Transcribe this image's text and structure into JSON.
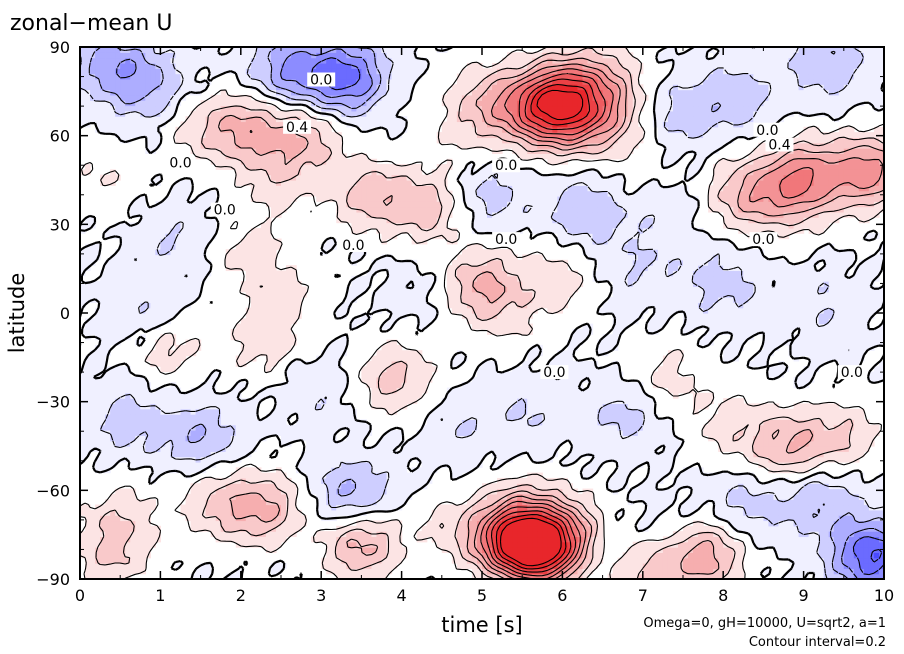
{
  "chart_data": {
    "type": "heatmap",
    "title": "zonal−mean U",
    "xlabel": "time [s]",
    "ylabel": "latitude",
    "xlim": [
      0,
      10
    ],
    "ylim": [
      -90,
      90
    ],
    "x_ticks": [
      0,
      1,
      2,
      3,
      4,
      5,
      6,
      7,
      8,
      9,
      10
    ],
    "y_ticks": [
      -90,
      -60,
      -30,
      0,
      30,
      60,
      90
    ],
    "y_tick_labels": [
      "−90",
      "−60",
      "−30",
      "0",
      "30",
      "60",
      "90"
    ],
    "annotation_params": "Omega=0, gH=10000, U=sqrt2, a=1",
    "annotation_contour": "Contour interval=0.2",
    "contour_interval": 0.2,
    "colormap": {
      "negative": "#3a3aff",
      "zero": "#ffffff",
      "positive": "#e8262b"
    },
    "contour_labels": [
      {
        "x": 3.0,
        "y": 79,
        "text": "0.0"
      },
      {
        "x": 2.7,
        "y": 63,
        "text": "0.4"
      },
      {
        "x": 1.25,
        "y": 51,
        "text": "0.0"
      },
      {
        "x": 1.8,
        "y": 35,
        "text": "0.0"
      },
      {
        "x": 3.4,
        "y": 23,
        "text": "0.0"
      },
      {
        "x": 5.3,
        "y": 50,
        "text": "0.0"
      },
      {
        "x": 5.3,
        "y": 25,
        "text": "0.0"
      },
      {
        "x": 8.5,
        "y": 25,
        "text": "0.0"
      },
      {
        "x": 8.55,
        "y": 62,
        "text": "0.0"
      },
      {
        "x": 8.7,
        "y": 57,
        "text": "0.4"
      },
      {
        "x": 5.9,
        "y": -20,
        "text": "0.0"
      },
      {
        "x": 9.6,
        "y": -20,
        "text": "0.0"
      }
    ],
    "features": [
      {
        "x": 6.0,
        "y": 74,
        "value": 1.0
      },
      {
        "x": 5.7,
        "y": 68,
        "value": 0.9
      },
      {
        "x": 6.2,
        "y": 65,
        "value": 0.6
      },
      {
        "x": 5.1,
        "y": 72,
        "value": 0.5
      },
      {
        "x": 6.5,
        "y": 80,
        "value": 0.4
      },
      {
        "x": 3.3,
        "y": 80,
        "value": -0.9
      },
      {
        "x": 2.6,
        "y": 82,
        "value": -0.6
      },
      {
        "x": 0.4,
        "y": 84,
        "value": -0.5
      },
      {
        "x": 0.9,
        "y": 76,
        "value": -0.4
      },
      {
        "x": 9.3,
        "y": 85,
        "value": -0.4
      },
      {
        "x": 2.1,
        "y": 62,
        "value": 0.6
      },
      {
        "x": 2.8,
        "y": 60,
        "value": 0.5
      },
      {
        "x": 1.5,
        "y": 63,
        "value": 0.3
      },
      {
        "x": 3.6,
        "y": 40,
        "value": 0.5
      },
      {
        "x": 4.3,
        "y": 36,
        "value": 0.5
      },
      {
        "x": 2.5,
        "y": 45,
        "value": 0.3
      },
      {
        "x": 9.8,
        "y": 48,
        "value": 0.9
      },
      {
        "x": 9.0,
        "y": 47,
        "value": 0.7
      },
      {
        "x": 8.3,
        "y": 40,
        "value": 0.6
      },
      {
        "x": 8.9,
        "y": 40,
        "value": 0.4
      },
      {
        "x": 6.6,
        "y": 68,
        "value": 0.4
      },
      {
        "x": 7.5,
        "y": 68,
        "value": -0.3
      },
      {
        "x": 8.2,
        "y": 73,
        "value": -0.3
      },
      {
        "x": 5.1,
        "y": 40,
        "value": -0.3
      },
      {
        "x": 6.3,
        "y": 35,
        "value": -0.4
      },
      {
        "x": 7.2,
        "y": 37,
        "value": -0.2
      },
      {
        "x": 2.1,
        "y": 20,
        "value": 0.3
      },
      {
        "x": 5.0,
        "y": 10,
        "value": 0.6
      },
      {
        "x": 5.9,
        "y": 12,
        "value": 0.3
      },
      {
        "x": 5.3,
        "y": -2,
        "value": 0.2
      },
      {
        "x": 8.0,
        "y": 10,
        "value": -0.3
      },
      {
        "x": 9.3,
        "y": 2,
        "value": -0.2
      },
      {
        "x": 7.0,
        "y": 15,
        "value": -0.2
      },
      {
        "x": 4.2,
        "y": 8,
        "value": -0.1
      },
      {
        "x": 2.3,
        "y": -10,
        "value": 0.3
      },
      {
        "x": 1.1,
        "y": -13,
        "value": 0.3
      },
      {
        "x": 3.9,
        "y": -22,
        "value": 0.5
      },
      {
        "x": 3.0,
        "y": -25,
        "value": -0.2
      },
      {
        "x": 7.3,
        "y": -22,
        "value": 0.3
      },
      {
        "x": 6.8,
        "y": -34,
        "value": -0.3
      },
      {
        "x": 5.6,
        "y": -34,
        "value": -0.2
      },
      {
        "x": 4.7,
        "y": -40,
        "value": -0.2
      },
      {
        "x": 8.8,
        "y": -45,
        "value": 0.6
      },
      {
        "x": 9.5,
        "y": -42,
        "value": 0.4
      },
      {
        "x": 8.1,
        "y": -38,
        "value": 0.3
      },
      {
        "x": 9.2,
        "y": -63,
        "value": -0.4
      },
      {
        "x": 9.85,
        "y": -82,
        "value": -1.0
      },
      {
        "x": 8.3,
        "y": -65,
        "value": -0.3
      },
      {
        "x": 2.3,
        "y": -66,
        "value": 0.6
      },
      {
        "x": 1.7,
        "y": -64,
        "value": 0.4
      },
      {
        "x": 3.5,
        "y": -78,
        "value": 0.7
      },
      {
        "x": 3.4,
        "y": -62,
        "value": -0.5
      },
      {
        "x": 0.4,
        "y": -82,
        "value": 0.4
      },
      {
        "x": 0.5,
        "y": -68,
        "value": 0.3
      },
      {
        "x": 1.5,
        "y": -42,
        "value": -0.4
      },
      {
        "x": 0.6,
        "y": -36,
        "value": -0.3
      },
      {
        "x": 5.7,
        "y": -80,
        "value": 1.6
      },
      {
        "x": 5.3,
        "y": -78,
        "value": 1.1
      },
      {
        "x": 6.1,
        "y": -75,
        "value": 0.7
      },
      {
        "x": 5.5,
        "y": -68,
        "value": 0.5
      },
      {
        "x": 7.0,
        "y": -86,
        "value": 0.5
      },
      {
        "x": 7.75,
        "y": -82,
        "value": 0.8
      },
      {
        "x": 4.6,
        "y": -72,
        "value": 0.2
      },
      {
        "x": 5.3,
        "y": -88,
        "value": -0.2
      },
      {
        "x": 6.5,
        "y": -80,
        "value": -0.3
      },
      {
        "x": 7.4,
        "y": -76,
        "value": -0.2
      },
      {
        "x": 1.2,
        "y": 25,
        "value": -0.2
      },
      {
        "x": 0.8,
        "y": 0,
        "value": -0.2
      },
      {
        "x": 2.6,
        "y": 5,
        "value": 0.2
      },
      {
        "x": 0.3,
        "y": 45,
        "value": 0.2
      },
      {
        "x": 4.7,
        "y": 60,
        "value": 0.2
      },
      {
        "x": 7.0,
        "y": 45,
        "value": 0.2
      }
    ]
  }
}
